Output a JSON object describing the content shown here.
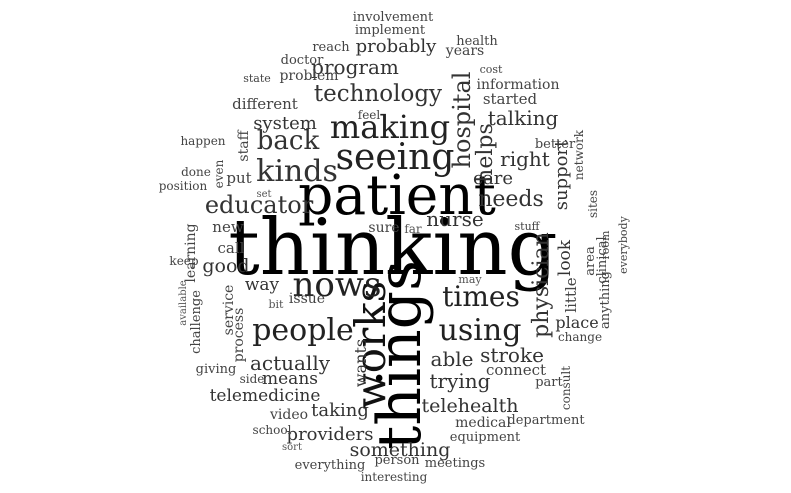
{
  "words": [
    {
      "text": "thinking",
      "color": "#000000"
    },
    {
      "text": "patient",
      "color": "#000000"
    },
    {
      "text": "things",
      "color": "#000000"
    },
    {
      "text": "works",
      "color": "#111111"
    },
    {
      "text": "seeing",
      "color": "#222222"
    },
    {
      "text": "making",
      "color": "#222222"
    },
    {
      "text": "nows",
      "color": "#222222"
    },
    {
      "text": "people",
      "color": "#222222"
    },
    {
      "text": "using",
      "color": "#222222"
    },
    {
      "text": "times",
      "color": "#222222"
    },
    {
      "text": "technology",
      "color": "#333333"
    },
    {
      "text": "hospital",
      "color": "#333333"
    },
    {
      "text": "kinds",
      "color": "#333333"
    },
    {
      "text": "physician",
      "color": "#333333"
    },
    {
      "text": "educator",
      "color": "#333333"
    },
    {
      "text": "needs",
      "color": "#333333"
    },
    {
      "text": "back",
      "color": "#333333"
    },
    {
      "text": "helps",
      "color": "#333333"
    },
    {
      "text": "program",
      "color": "#333333"
    },
    {
      "text": "probably",
      "color": "#333333"
    },
    {
      "text": "system",
      "color": "#333333"
    },
    {
      "text": "talking",
      "color": "#333333"
    },
    {
      "text": "right",
      "color": "#333333"
    },
    {
      "text": "care",
      "color": "#333333"
    },
    {
      "text": "support",
      "color": "#333333"
    },
    {
      "text": "nurse",
      "color": "#333333"
    },
    {
      "text": "good",
      "color": "#333333"
    },
    {
      "text": "actually",
      "color": "#333333"
    },
    {
      "text": "trying",
      "color": "#333333"
    },
    {
      "text": "able",
      "color": "#333333"
    },
    {
      "text": "stroke",
      "color": "#333333"
    },
    {
      "text": "wants",
      "color": "#333333"
    },
    {
      "text": "telehealth",
      "color": "#333333"
    },
    {
      "text": "taking",
      "color": "#333333"
    },
    {
      "text": "providers",
      "color": "#333333"
    },
    {
      "text": "something",
      "color": "#333333"
    },
    {
      "text": "telemedicine",
      "color": "#333333"
    },
    {
      "text": "means",
      "color": "#333333"
    },
    {
      "text": "way",
      "color": "#333333"
    },
    {
      "text": "look",
      "color": "#333333"
    },
    {
      "text": "place",
      "color": "#333333"
    },
    {
      "text": "started",
      "color": "#444444"
    },
    {
      "text": "different",
      "color": "#444444"
    },
    {
      "text": "issue",
      "color": "#444444"
    },
    {
      "text": "new",
      "color": "#444444"
    },
    {
      "text": "call",
      "color": "#444444"
    },
    {
      "text": "sure",
      "color": "#444444"
    },
    {
      "text": "put",
      "color": "#444444"
    },
    {
      "text": "connect",
      "color": "#444444"
    },
    {
      "text": "process",
      "color": "#444444"
    },
    {
      "text": "service",
      "color": "#444444"
    },
    {
      "text": "medical",
      "color": "#444444"
    },
    {
      "text": "years",
      "color": "#444444"
    },
    {
      "text": "problem",
      "color": "#444444"
    },
    {
      "text": "information",
      "color": "#444444"
    },
    {
      "text": "health",
      "color": "#444444"
    },
    {
      "text": "doctor",
      "color": "#444444"
    },
    {
      "text": "reach",
      "color": "#444444"
    },
    {
      "text": "implement",
      "color": "#444444"
    },
    {
      "text": "involvement",
      "color": "#444444"
    },
    {
      "text": "better",
      "color": "#444444"
    },
    {
      "text": "little",
      "color": "#444444"
    },
    {
      "text": "area",
      "color": "#444444"
    },
    {
      "text": "clinical",
      "color": "#444444"
    },
    {
      "text": "anything",
      "color": "#444444"
    },
    {
      "text": "room",
      "color": "#444444"
    },
    {
      "text": "part",
      "color": "#444444"
    },
    {
      "text": "department",
      "color": "#444444"
    },
    {
      "text": "equipment",
      "color": "#444444"
    },
    {
      "text": "meetings",
      "color": "#444444"
    },
    {
      "text": "person",
      "color": "#444444"
    },
    {
      "text": "everything",
      "color": "#444444"
    },
    {
      "text": "interesting",
      "color": "#444444"
    },
    {
      "text": "video",
      "color": "#444444"
    },
    {
      "text": "school",
      "color": "#444444"
    },
    {
      "text": "sort",
      "color": "#555555"
    },
    {
      "text": "side",
      "color": "#444444"
    },
    {
      "text": "giving",
      "color": "#444444"
    },
    {
      "text": "challenge",
      "color": "#444444"
    },
    {
      "text": "available",
      "color": "#555555"
    },
    {
      "text": "learning",
      "color": "#444444"
    },
    {
      "text": "keep",
      "color": "#444444"
    },
    {
      "text": "position",
      "color": "#444444"
    },
    {
      "text": "done",
      "color": "#444444"
    },
    {
      "text": "happen",
      "color": "#444444"
    },
    {
      "text": "even",
      "color": "#444444"
    },
    {
      "text": "staff",
      "color": "#444444"
    },
    {
      "text": "set",
      "color": "#555555"
    },
    {
      "text": "feel",
      "color": "#444444"
    },
    {
      "text": "state",
      "color": "#444444"
    },
    {
      "text": "cost",
      "color": "#444444"
    },
    {
      "text": "network",
      "color": "#444444"
    },
    {
      "text": "sites",
      "color": "#444444"
    },
    {
      "text": "everybody",
      "color": "#444444"
    },
    {
      "text": "change",
      "color": "#444444"
    },
    {
      "text": "consult",
      "color": "#444444"
    },
    {
      "text": "far",
      "color": "#555555"
    },
    {
      "text": "stuff",
      "color": "#444444"
    },
    {
      "text": "may",
      "color": "#555555"
    },
    {
      "text": "bit",
      "color": "#555555"
    }
  ]
}
